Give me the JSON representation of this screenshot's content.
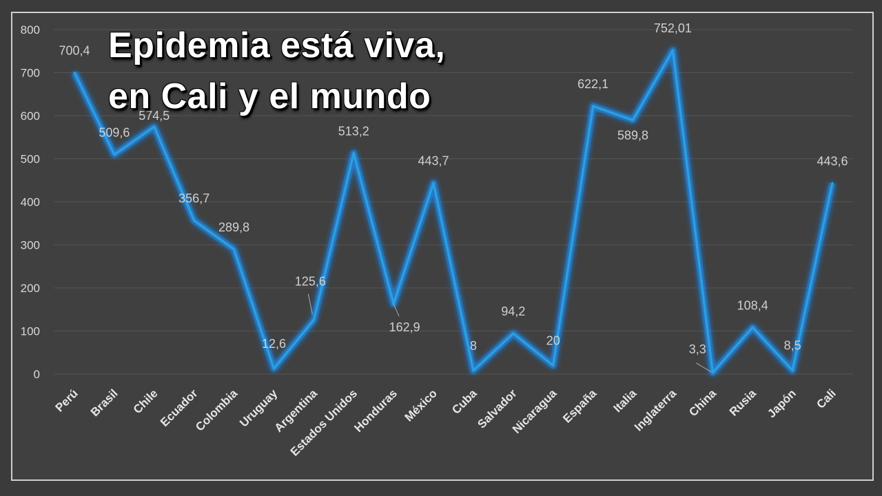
{
  "title": {
    "line1": "Epidemia está viva,",
    "line2": "en Cali y el mundo"
  },
  "colors": {
    "background": "#3b3b3b",
    "line": "#2a9fe0",
    "glow": "#1e90ff",
    "grid": "#555555",
    "text": "#d9d9d9"
  },
  "chart_data": {
    "type": "line",
    "title": "Epidemia está viva, en Cali y el mundo",
    "xlabel": "",
    "ylabel": "",
    "ylim": [
      0,
      800
    ],
    "yticks": [
      0,
      100,
      200,
      300,
      400,
      500,
      600,
      700,
      800
    ],
    "grid": true,
    "categories": [
      "Perú",
      "Brasil",
      "Chile",
      "Ecuador",
      "Colombia",
      "Uruguay",
      "Argentina",
      "Estados Unidos",
      "Honduras",
      "México",
      "Cuba",
      "Salvador",
      "Nicaragua",
      "España",
      "Italia",
      "Inglaterra",
      "China",
      "Rusia",
      "Japón",
      "Cali"
    ],
    "values": [
      700.4,
      509.6,
      574.5,
      356.7,
      289.8,
      12.6,
      125.6,
      513.2,
      162.9,
      443.7,
      8,
      94.2,
      20,
      622.1,
      589.8,
      752.01,
      3.3,
      108.4,
      8.5,
      443.6
    ],
    "labels": [
      "700,4",
      "509,6",
      "574,5",
      "356,7",
      "289,8",
      "12,6",
      "125,6",
      "513,2",
      "162,9",
      "443,7",
      "8",
      "94,2",
      "20",
      "622,1",
      "589,8",
      "752,01",
      "3,3",
      "108,4",
      "8,5",
      "443,6"
    ]
  }
}
